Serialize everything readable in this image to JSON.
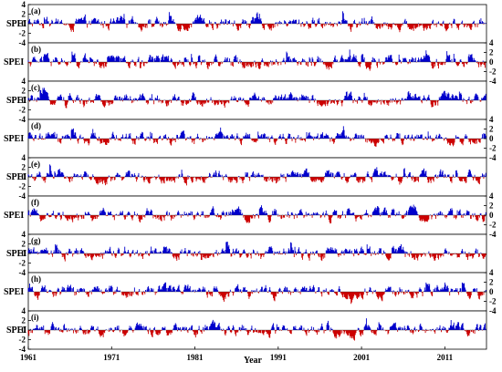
{
  "chart_data": {
    "type": "bar",
    "xlabel": "Year",
    "ylabel": "SPEI",
    "x_ticks": [
      "1961",
      "1971",
      "1981",
      "1991",
      "2001",
      "2011"
    ],
    "x_range": [
      1961,
      2016
    ],
    "y_ticks": [
      "4",
      "2",
      "0",
      "-2",
      "-4"
    ],
    "ylim": [
      -4,
      4
    ],
    "positive_color": "#0000cc",
    "negative_color": "#cc0000",
    "panels": [
      {
        "label": "(a)",
        "ylabel": "SPEI",
        "axis_side": "left"
      },
      {
        "label": "(b)",
        "ylabel": "SPEI",
        "axis_side": "right"
      },
      {
        "label": "(c)",
        "ylabel": "SPEI",
        "axis_side": "left"
      },
      {
        "label": "(d)",
        "ylabel": "SPEI",
        "axis_side": "right"
      },
      {
        "label": "(e)",
        "ylabel": "SPEI",
        "axis_side": "left"
      },
      {
        "label": "(f)",
        "ylabel": "SPEI",
        "axis_side": "right"
      },
      {
        "label": "(g)",
        "ylabel": "SPEI",
        "axis_side": "left"
      },
      {
        "label": "(h)",
        "ylabel": "SPEI",
        "axis_side": "right"
      },
      {
        "label": "(i)",
        "ylabel": "SPEI",
        "axis_side": "left"
      }
    ]
  }
}
